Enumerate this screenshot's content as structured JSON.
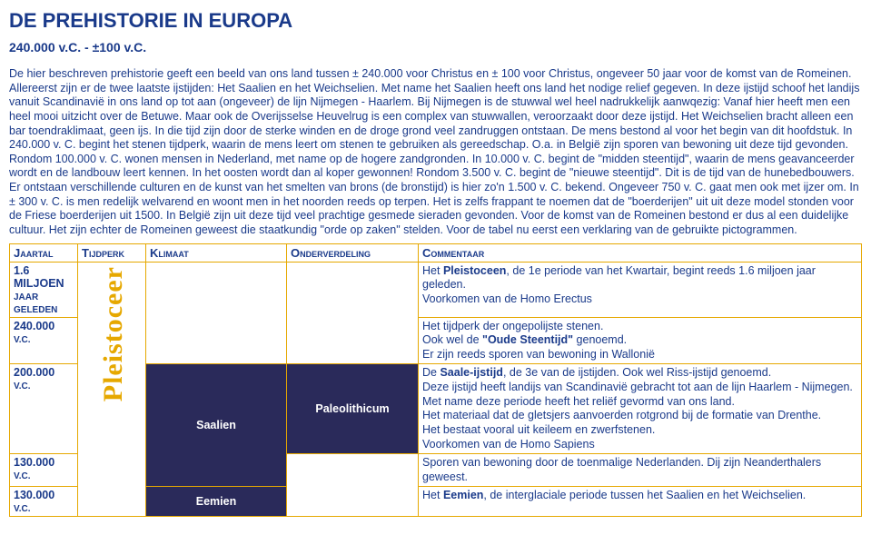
{
  "header": {
    "title": "DE PREHISTORIE IN EUROPA",
    "subtitle": "240.000 v.C. - ±100 v.C."
  },
  "intro": "De hier beschreven prehistorie geeft een beeld van ons land tussen ± 240.000 voor Christus en ± 100 voor Christus, ongeveer 50 jaar voor de komst van de Romeinen. Allereerst zijn er de twee laatste ijstijden: Het Saalien en het Weichselien. Met name het Saalien heeft ons land het nodige relief gegeven. In deze ijstijd schoof het landijs vanuit Scandinavië in ons land op tot aan (ongeveer) de lijn Nijmegen - Haarlem. Bij Nijmegen is de stuwwal wel heel nadrukkelijk aanwqezig: Vanaf hier heeft men een heel mooi uitzicht over de Betuwe. Maar ook de Overijsselse Heuvelrug is een complex van stuwwallen, veroorzaakt door deze ijstijd. Het Weichselien bracht alleen een bar toendraklimaat, geen ijs. In die tijd zijn door de sterke winden en de droge grond veel zandruggen ontstaan. De mens bestond al voor het begin van dit hoofdstuk. In 240.000 v. C. begint het stenen tijdperk, waarin de mens leert om stenen te gebruiken als gereedschap. O.a. in België zijn sporen van bewoning uit deze tijd gevonden. Rondom 100.000 v. C. wonen mensen in Nederland, met name op de hogere zandgronden. In 10.000 v. C. begint de \"midden steentijd\", waarin de mens geavanceerder wordt en de landbouw leert kennen. In het oosten wordt dan al koper gewonnen! Rondom 3.500 v. C. begint de \"nieuwe steentijd\". Dit is de tijd van de hunebedbouwers. Er ontstaan verschillende culturen en de kunst van het smelten van brons (de bronstijd) is hier zo'n 1.500 v. C. bekend. Ongeveer 750 v. C. gaat men ook met ijzer om. In ± 300 v. C. is men redelijk welvarend en woont men in het noorden reeds op terpen. Het is zelfs frappant te noemen dat de \"boerderijen\" uit uit deze model stonden voor de Friese boerderijen uit 1500. In België zijn uit deze tijd veel prachtige gesmede sieraden gevonden. Voor de komst van de Romeinen bestond er dus al een duidelijke cultuur. Het zijn echter de Romeinen geweest die staatkundig \"orde op zaken\" stelden. Voor de tabel nu eerst een verklaring van de gebruikte pictogrammen.",
  "table": {
    "headers": [
      "Jaartal",
      "Tijdperk",
      "Klimaat",
      "Onderverdeling",
      "Commentaar"
    ],
    "tijdperk_vertical": "Pleistoceer",
    "klimaat_saalien": "Saalien",
    "klimaat_eemien": "Eemien",
    "onder_paleo": "Paleolithicum",
    "rows": [
      {
        "jaartal_main": "1.6 MILJOEN",
        "jaartal_sub": "JAAR GELEDEN",
        "comm": "Het <b>Pleistoceen</b>, de 1e periode van het Kwartair, begint reeds 1.6 miljoen jaar geleden.<br>Voorkomen van de Homo Erectus"
      },
      {
        "jaartal_main": "240.000",
        "jaartal_sub": "V.C.",
        "comm": "Het tijdperk der ongepolijste stenen.<br>Ook wel de <b>\"Oude Steentijd\"</b> genoemd.<br>Er zijn reeds sporen van bewoning in Wallonië"
      },
      {
        "jaartal_main": "200.000",
        "jaartal_sub": "V.C.",
        "comm": "De <b>Saale-ijstijd</b>, de 3e van de ijstijden. Ook wel Riss-ijstijd genoemd.<br>Deze ijstijd heeft landijs van Scandinavië gebracht tot aan de lijn Haarlem - Nijmegen. Met name deze periode heeft het reliëf gevormd van ons land.<br>Het materiaal dat de gletsjers aanvoerden rotgrond bij de formatie van Drenthe.<br>Het bestaat vooral uit keileem en zwerfstenen.<br>Voorkomen van de Homo Sapiens"
      },
      {
        "jaartal_main": "130.000",
        "jaartal_sub": "V.C.",
        "comm": "Sporen van bewoning door de toenmalige Nederlanden. Dij zijn Neanderthalers geweest."
      },
      {
        "jaartal_main": "130.000",
        "jaartal_sub": "V.C.",
        "comm": "Het <b>Eemien</b>, de interglaciale periode tussen het Saalien en het Weichselien."
      }
    ]
  }
}
